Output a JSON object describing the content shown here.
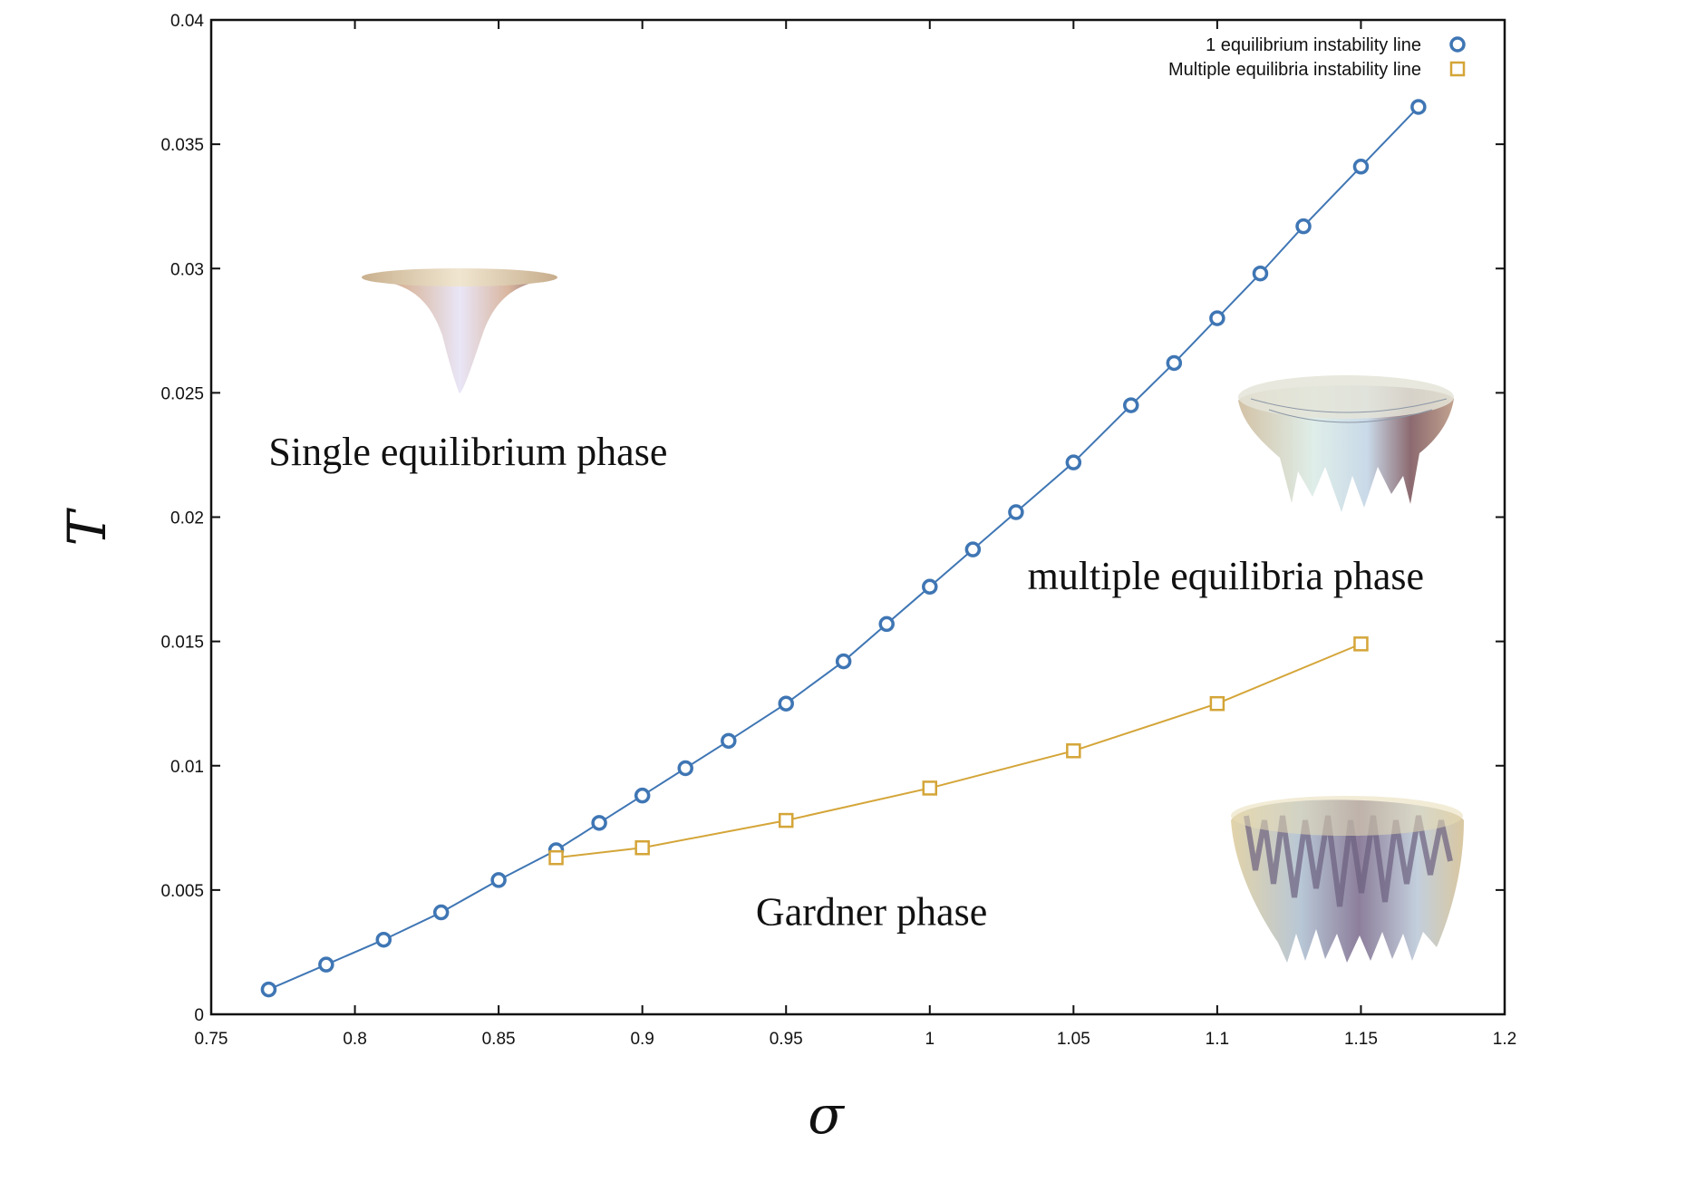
{
  "chart_data": {
    "type": "line",
    "title": "",
    "xlabel": "σ",
    "ylabel": "T",
    "xlim": [
      0.75,
      1.2
    ],
    "ylim": [
      0,
      0.04
    ],
    "xticks": [
      0.75,
      0.8,
      0.85,
      0.9,
      0.95,
      1,
      1.05,
      1.1,
      1.15,
      1.2
    ],
    "xtick_labels": [
      "0.75",
      "0.8",
      "0.85",
      "0.9",
      "0.95",
      "1",
      "1.05",
      "1.1",
      "1.15",
      "1.2"
    ],
    "yticks": [
      0,
      0.005,
      0.01,
      0.015,
      0.02,
      0.025,
      0.03,
      0.035,
      0.04
    ],
    "ytick_labels": [
      "0",
      "0.005",
      "0.01",
      "0.015",
      "0.02",
      "0.025",
      "0.03",
      "0.035",
      "0.04"
    ],
    "grid": false,
    "legend_position": "top-right",
    "series": [
      {
        "name": "1 equilibrium  instability line",
        "marker": "circle",
        "color": "#3f76b4",
        "x": [
          0.77,
          0.79,
          0.81,
          0.83,
          0.85,
          0.87,
          0.885,
          0.9,
          0.915,
          0.93,
          0.95,
          0.97,
          0.985,
          1.0,
          1.015,
          1.03,
          1.05,
          1.07,
          1.085,
          1.1,
          1.115,
          1.13,
          1.15,
          1.17
        ],
        "y": [
          0.001,
          0.002,
          0.003,
          0.0041,
          0.0054,
          0.0066,
          0.0077,
          0.0088,
          0.0099,
          0.011,
          0.0125,
          0.0142,
          0.0157,
          0.0172,
          0.0187,
          0.0202,
          0.0222,
          0.0245,
          0.0262,
          0.028,
          0.0298,
          0.0317,
          0.0341,
          0.0365
        ]
      },
      {
        "name": "Multiple equilibria instability line",
        "marker": "square",
        "color": "#d4a538",
        "x": [
          0.87,
          0.9,
          0.95,
          1.0,
          1.05,
          1.1,
          1.15
        ],
        "y": [
          0.0063,
          0.0067,
          0.0078,
          0.0091,
          0.0106,
          0.0125,
          0.0149
        ]
      }
    ],
    "annotations": [
      {
        "text": "Single equilibrium phase",
        "x": 0.77,
        "y": 0.0221
      },
      {
        "text": "multiple equilibria phase",
        "x": 1.034,
        "y": 0.0171
      },
      {
        "text": "Gardner phase",
        "x": 0.9395,
        "y": 0.0036
      }
    ]
  }
}
